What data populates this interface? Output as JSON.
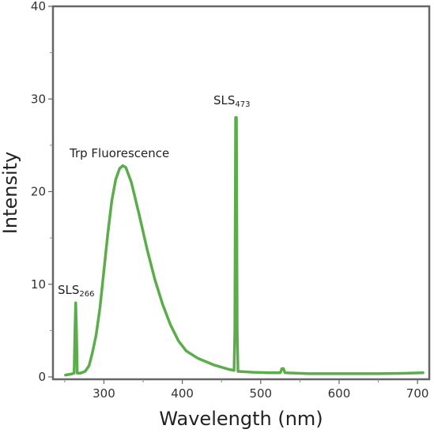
{
  "chart_data": {
    "type": "line",
    "xlabel": "Wavelength (nm)",
    "ylabel": "Intensity",
    "xlim": [
      235,
      715
    ],
    "ylim": [
      0,
      40
    ],
    "xticks": [
      300,
      400,
      500,
      600,
      700
    ],
    "yticks": [
      0,
      10,
      20,
      30,
      40
    ],
    "grid": false,
    "line_color": "#5aad4a",
    "series": [
      {
        "values_xy": [
          [
            251,
            0.2
          ],
          [
            258,
            0.3
          ],
          [
            262,
            0.4
          ],
          [
            263,
            5.0
          ],
          [
            264,
            8.0
          ],
          [
            265,
            5.0
          ],
          [
            266,
            0.4
          ],
          [
            270,
            0.4
          ],
          [
            276,
            0.6
          ],
          [
            281,
            1.2
          ],
          [
            285,
            2.5
          ],
          [
            290,
            4.5
          ],
          [
            295,
            7.5
          ],
          [
            300,
            11.5
          ],
          [
            305,
            15.5
          ],
          [
            310,
            19.0
          ],
          [
            315,
            21.3
          ],
          [
            320,
            22.5
          ],
          [
            324,
            22.8
          ],
          [
            328,
            22.6
          ],
          [
            335,
            21.0
          ],
          [
            345,
            17.5
          ],
          [
            355,
            13.8
          ],
          [
            365,
            10.5
          ],
          [
            375,
            7.8
          ],
          [
            385,
            5.6
          ],
          [
            395,
            3.9
          ],
          [
            405,
            2.8
          ],
          [
            420,
            2.0
          ],
          [
            440,
            1.3
          ],
          [
            460,
            0.8
          ],
          [
            466,
            0.7
          ],
          [
            467,
            5.0
          ],
          [
            468,
            28.0
          ],
          [
            469,
            28.0
          ],
          [
            470,
            5.0
          ],
          [
            471,
            0.6
          ],
          [
            490,
            0.5
          ],
          [
            510,
            0.45
          ],
          [
            525,
            0.45
          ],
          [
            527,
            0.9
          ],
          [
            529,
            0.9
          ],
          [
            531,
            0.45
          ],
          [
            560,
            0.35
          ],
          [
            600,
            0.35
          ],
          [
            650,
            0.35
          ],
          [
            690,
            0.4
          ],
          [
            707,
            0.45
          ]
        ]
      }
    ],
    "annotations": [
      {
        "base": "SLS",
        "sub": "266",
        "x": 265,
        "y": 8.0
      },
      {
        "text": "Trp Fluorescence",
        "x": 324,
        "y": 22.8
      },
      {
        "base": "SLS",
        "sub": "473",
        "x": 468,
        "y": 28.0
      }
    ]
  }
}
